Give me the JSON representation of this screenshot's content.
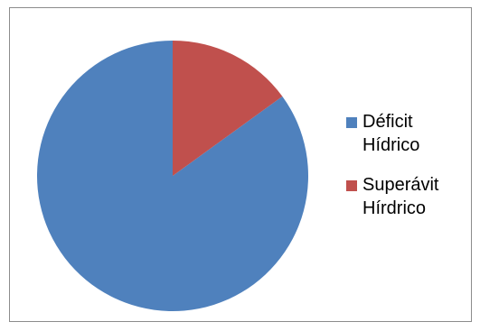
{
  "chart_data": {
    "type": "pie",
    "title": "",
    "categories": [
      "Déficit\nHídrico",
      "Superávit\nHírdrico"
    ],
    "values": [
      85,
      15
    ],
    "colors": [
      "#4f81bd",
      "#c0504d"
    ],
    "start_angle_deg": 0,
    "direction": "counterclockwise",
    "legend_placement": "right"
  }
}
